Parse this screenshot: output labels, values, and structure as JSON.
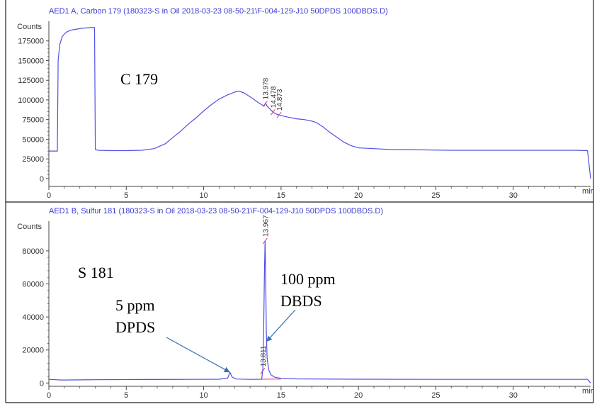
{
  "colors": {
    "trace": "#5050e6",
    "header": "#3a3ad8",
    "axis": "#444444",
    "marker": "#e0308a",
    "arrow": "#3a6fb0",
    "frame": "#222222"
  },
  "chart_data": [
    {
      "type": "line",
      "title": "AED1 A, Carbon 179 (180323-S in Oil 2018-03-23 08-50-21\\F-004-129-J10 50DPDS 100DBDS.D)",
      "ylabel": "Counts",
      "xlabel_unit": "mir",
      "xlim": [
        0,
        35
      ],
      "ylim": [
        -10000,
        200000
      ],
      "x_ticks": [
        0,
        5,
        10,
        15,
        20,
        25,
        30
      ],
      "y_ticks": [
        0,
        25000,
        50000,
        75000,
        100000,
        125000,
        150000,
        175000
      ],
      "y_tick_labels": [
        "0",
        "25000",
        "50000",
        "75000",
        "100000",
        "125000",
        "150000",
        "175000"
      ],
      "annotation": "C 179",
      "peak_labels": [
        {
          "x": 13.978,
          "label": "13.978"
        },
        {
          "x": 14.478,
          "label": "14.478"
        },
        {
          "x": 14.873,
          "label": "14.873"
        }
      ],
      "series": [
        {
          "x": [
            0,
            0.55,
            0.6,
            0.7,
            0.85,
            1.0,
            1.2,
            1.5,
            1.8,
            2.1,
            2.4,
            2.7,
            2.95,
            3.0,
            3.05,
            3.2,
            4,
            5,
            6,
            6.8,
            7.5,
            8,
            8.5,
            9,
            9.5,
            10,
            10.5,
            11,
            11.5,
            12,
            12.3,
            12.6,
            13,
            13.5,
            13.9,
            14.0,
            14.1,
            14.3,
            14.5,
            14.7,
            15,
            15.5,
            16,
            16.5,
            17,
            17.3,
            17.7,
            18,
            18.5,
            19,
            19.5,
            20,
            21,
            22,
            24,
            26,
            28,
            30,
            32,
            34,
            34.8,
            35
          ],
          "values": [
            35000,
            35000,
            150000,
            170000,
            180000,
            184000,
            187000,
            189000,
            190000,
            191000,
            191500,
            192000,
            192000,
            37000,
            36500,
            36000,
            35500,
            35500,
            36000,
            38000,
            44000,
            52000,
            60000,
            69000,
            77000,
            86000,
            94000,
            101000,
            106000,
            110000,
            111000,
            109000,
            104000,
            97000,
            92000,
            96000,
            92000,
            88000,
            84000,
            82000,
            80000,
            78000,
            76000,
            75000,
            73000,
            71000,
            66000,
            61000,
            54000,
            47000,
            42000,
            39000,
            38000,
            37000,
            36500,
            36000,
            36000,
            36000,
            36000,
            36000,
            35500,
            0
          ]
        }
      ]
    },
    {
      "type": "line",
      "title": "AED1 B, Sulfur 181 (180323-S in Oil 2018-03-23 08-50-21\\F-004-129-J10 50DPDS 100DBDS.D)",
      "ylabel": "Counts",
      "xlabel_unit": "mir",
      "xlim": [
        0,
        35
      ],
      "ylim": [
        -2000,
        98000
      ],
      "x_ticks": [
        0,
        5,
        10,
        15,
        20,
        25,
        30
      ],
      "y_ticks": [
        0,
        20000,
        40000,
        60000,
        80000
      ],
      "y_tick_labels": [
        "0",
        "20000",
        "40000",
        "60000",
        "80000"
      ],
      "annotation": "S 181",
      "peak_labels": [
        {
          "x": 13.967,
          "label": "13.967"
        },
        {
          "x": 13.811,
          "label": "13.811"
        }
      ],
      "callouts": [
        {
          "line1": "5 ppm",
          "line2": "DPDS",
          "target_x": 11.7,
          "target_y": 6500
        },
        {
          "line1": "100 ppm",
          "line2": "DBDS",
          "target_x": 14.05,
          "target_y": 25000
        }
      ],
      "series": [
        {
          "x": [
            0,
            0.8,
            3,
            6,
            9,
            11,
            11.55,
            11.7,
            11.85,
            12.1,
            13,
            13.75,
            13.82,
            13.88,
            13.93,
            13.967,
            14.0,
            14.05,
            14.1,
            14.2,
            14.35,
            14.6,
            15,
            16,
            20,
            25,
            30,
            34.8,
            35
          ],
          "values": [
            2200,
            1800,
            2000,
            2100,
            2200,
            2300,
            3000,
            6500,
            3500,
            2400,
            2200,
            2300,
            8000,
            35000,
            70000,
            86000,
            70000,
            30000,
            15000,
            8000,
            5000,
            3500,
            2800,
            2500,
            2300,
            2200,
            2200,
            2200,
            0
          ]
        }
      ]
    }
  ]
}
